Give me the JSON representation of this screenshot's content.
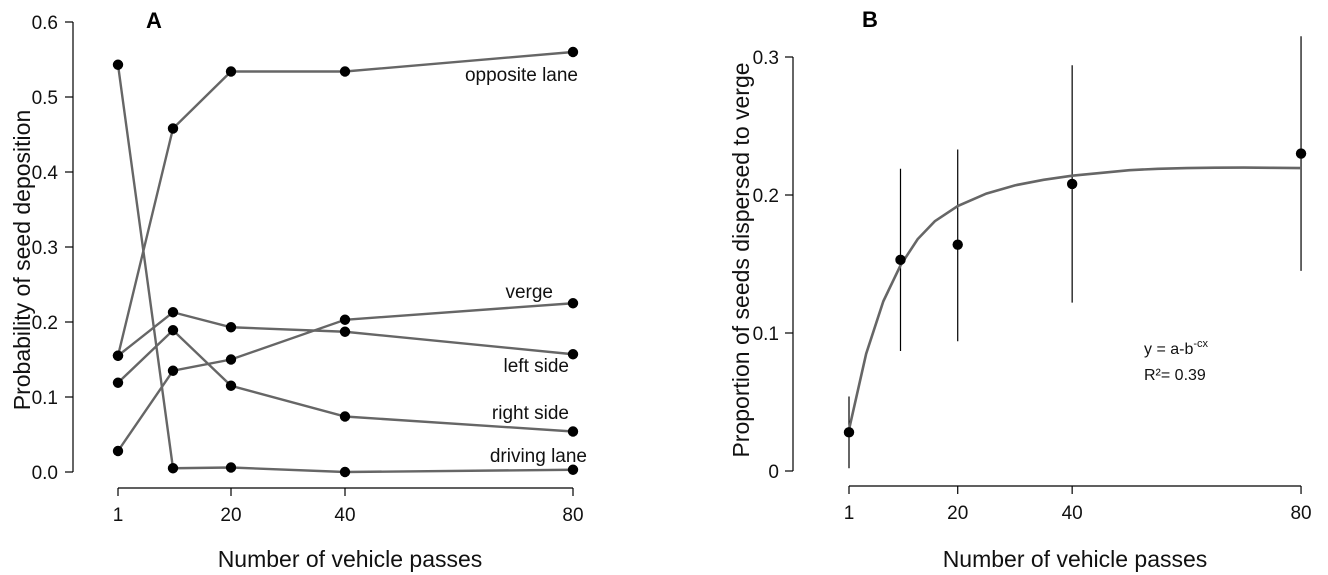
{
  "chart_data": [
    {
      "panel": "A",
      "type": "line",
      "xlabel": "Number of vehicle passes",
      "ylabel": "Probability of seed deposition",
      "xticks": [
        1,
        20,
        40,
        80
      ],
      "yticks": [
        "0.0",
        "0.1",
        "0.2",
        "0.3",
        "0.4",
        "0.5",
        "0.6"
      ],
      "ylim": [
        0,
        0.6
      ],
      "x": [
        1,
        10,
        20,
        40,
        80
      ],
      "series": [
        {
          "name": "opposite lane",
          "values": [
            0.155,
            0.458,
            0.534,
            0.534,
            0.56
          ]
        },
        {
          "name": "verge",
          "values": [
            0.028,
            0.135,
            0.15,
            0.203,
            0.225
          ]
        },
        {
          "name": "left side",
          "values": [
            0.155,
            0.213,
            0.193,
            0.187,
            0.157
          ]
        },
        {
          "name": "right side",
          "values": [
            0.119,
            0.189,
            0.115,
            0.074,
            0.054
          ]
        },
        {
          "name": "driving lane",
          "values": [
            0.543,
            0.005,
            0.006,
            0.0,
            0.003
          ]
        }
      ]
    },
    {
      "panel": "B",
      "type": "scatter",
      "xlabel": "Number of vehicle passes",
      "ylabel": "Proportion of seeds dispersed to verge",
      "xticks": [
        1,
        20,
        40,
        80
      ],
      "yticks": [
        "0",
        "0.1",
        "0.2",
        "0.3"
      ],
      "ylim": [
        0,
        0.3
      ],
      "x": [
        1,
        10,
        20,
        40,
        80
      ],
      "values": [
        0.028,
        0.153,
        0.164,
        0.208,
        0.23
      ],
      "error_low": [
        0.002,
        0.087,
        0.094,
        0.122,
        0.145
      ],
      "error_high": [
        0.054,
        0.219,
        0.233,
        0.294,
        0.315
      ],
      "fit": {
        "equation_base": "y = a-b",
        "equation_exponent": "-cx",
        "r2_label": "R²= 0.39",
        "curve": [
          [
            1,
            0.03
          ],
          [
            4,
            0.085
          ],
          [
            7,
            0.123
          ],
          [
            10,
            0.149
          ],
          [
            13,
            0.168
          ],
          [
            16,
            0.181
          ],
          [
            20,
            0.192
          ],
          [
            25,
            0.201
          ],
          [
            30,
            0.207
          ],
          [
            35,
            0.211
          ],
          [
            40,
            0.214
          ],
          [
            45,
            0.216
          ],
          [
            50,
            0.218
          ],
          [
            55,
            0.219
          ],
          [
            60,
            0.2195
          ],
          [
            65,
            0.2198
          ],
          [
            70,
            0.2199
          ],
          [
            75,
            0.2197
          ],
          [
            80,
            0.2195
          ]
        ]
      }
    }
  ]
}
